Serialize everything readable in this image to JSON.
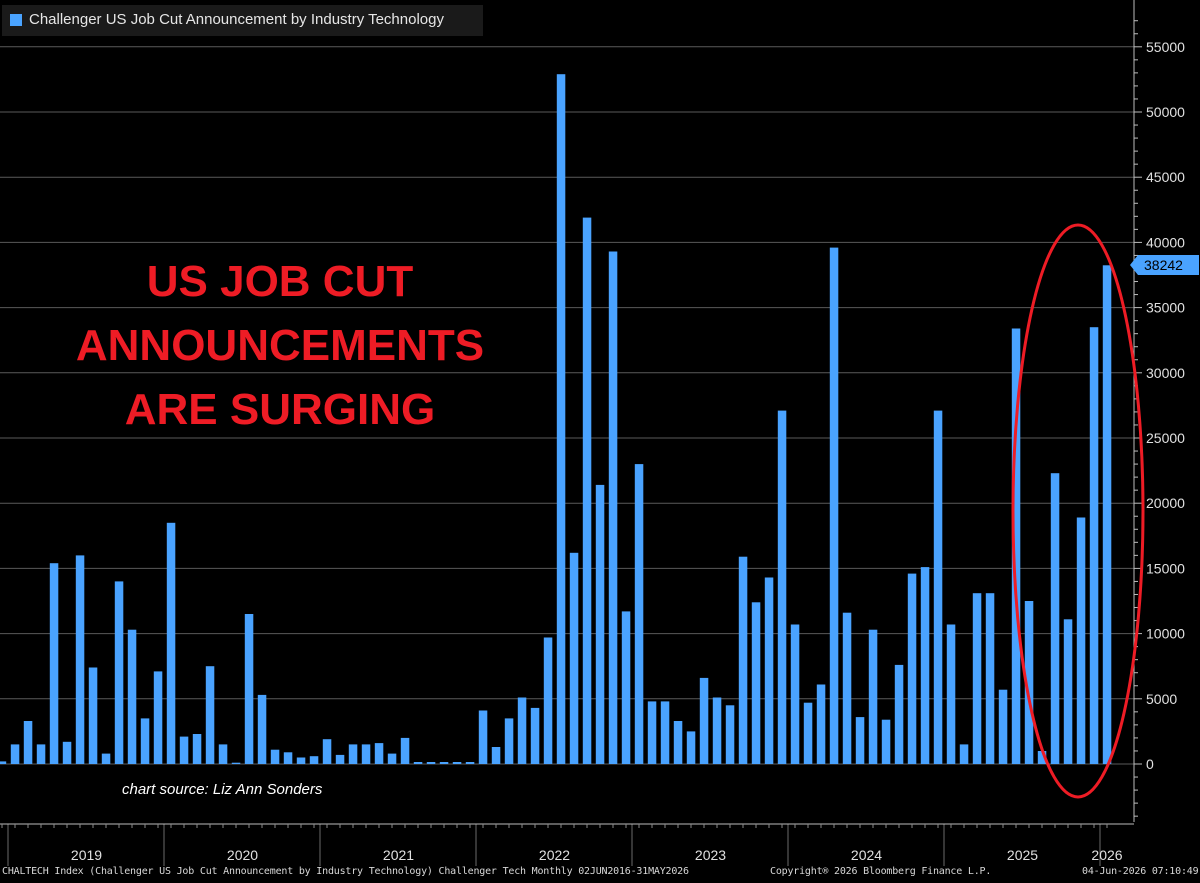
{
  "legend": {
    "label": "Challenger US Job Cut Announcement by Industry Technology",
    "color": "#4aa3ff"
  },
  "annotation": {
    "lines": [
      "US JOB CUT",
      "ANNOUNCEMENTS",
      "ARE SURGING"
    ],
    "color": "#ee1c25",
    "source": "chart source: Liz Ann Sonders"
  },
  "last_value_label": "38242",
  "footer": {
    "left": "CHALTECH Index (Challenger US Job Cut Announcement by Industry Technology) Challenger Tech Monthly 02JUN2016-31MAY2026",
    "center": "Copyright® 2026 Bloomberg Finance L.P.",
    "right": "04-Jun-2026 07:10:49"
  },
  "chart_data": {
    "type": "bar",
    "ylim": [
      -4500,
      58000
    ],
    "y_ticks": [
      0,
      5000,
      10000,
      15000,
      20000,
      25000,
      30000,
      35000,
      40000,
      45000,
      50000,
      55000
    ],
    "grid": true,
    "bar_color": "#4aa3ff",
    "x_year_labels": [
      "2019",
      "2020",
      "2021",
      "2022",
      "2023",
      "2024",
      "2025",
      "2026"
    ],
    "x_year_start_index": [
      1,
      13,
      25,
      37,
      49,
      61,
      73,
      85
    ],
    "values": [
      200,
      1500,
      3300,
      1500,
      15400,
      1700,
      16000,
      7400,
      800,
      14000,
      10300,
      3500,
      7100,
      18500,
      2100,
      2300,
      7500,
      1500,
      100,
      11500,
      5300,
      1100,
      900,
      500,
      600,
      1900,
      700,
      1500,
      1500,
      1600,
      800,
      2000,
      150,
      150,
      150,
      150,
      150,
      4100,
      1300,
      3500,
      5100,
      4300,
      9700,
      52900,
      16200,
      41900,
      21400,
      39300,
      11700,
      23000,
      4800,
      4800,
      3300,
      2500,
      6600,
      5100,
      4500,
      15900,
      12400,
      14300,
      27100,
      10700,
      4700,
      6100,
      39600,
      11600,
      3600,
      10300,
      3400,
      7600,
      14600,
      15100,
      27100,
      10700,
      1500,
      13100,
      13100,
      5700,
      33400,
      12500,
      1000,
      22300,
      11100,
      18900,
      33500,
      38242
    ],
    "highlight": {
      "shape": "ellipse",
      "color": "#ee1c25",
      "covers_last_n_bars": 7
    }
  }
}
